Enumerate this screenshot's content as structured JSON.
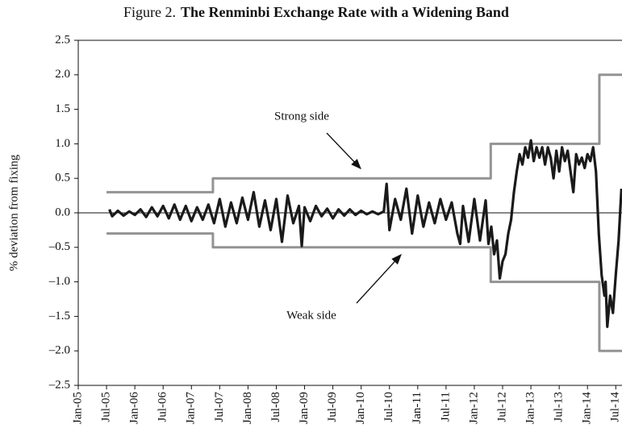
{
  "figure_label": "Figure 2.",
  "chart_data": {
    "type": "line",
    "title": "The Renminbi Exchange Rate with a Widening Band",
    "ylabel": "% deviation from fixing",
    "xlim": [
      2005,
      2014.61
    ],
    "ylim": [
      -2.5,
      2.5
    ],
    "yticks": [
      2.5,
      {
        "value": 2.0,
        "label": "2.0"
      },
      1.5,
      {
        "value": 1.0,
        "label": "1.0"
      },
      0.5,
      {
        "value": 0.0,
        "label": "0.0"
      },
      {
        "value": -0.5,
        "label": "–0.5"
      },
      {
        "value": -1.0,
        "label": "–1.0"
      },
      {
        "value": -1.5,
        "label": "–1.5"
      },
      {
        "value": -2.0,
        "label": "–2.0"
      },
      {
        "value": -2.5,
        "label": "–2.5"
      }
    ],
    "xticks": [
      {
        "value": 2005,
        "label": "Jan-05"
      },
      {
        "value": 2005.5,
        "label": "Jul-05"
      },
      {
        "value": 2006,
        "label": "Jan-06"
      },
      {
        "value": 2006.5,
        "label": "Jul-06"
      },
      {
        "value": 2007,
        "label": "Jan-07"
      },
      {
        "value": 2007.5,
        "label": "Jul-07"
      },
      {
        "value": 2008,
        "label": "Jan-08"
      },
      {
        "value": 2008.5,
        "label": "Jul-08"
      },
      {
        "value": 2009,
        "label": "Jan-09"
      },
      {
        "value": 2009.5,
        "label": "Jul-09"
      },
      {
        "value": 2010,
        "label": "Jan-10"
      },
      {
        "value": 2010.5,
        "label": "Jul-10"
      },
      {
        "value": 2011,
        "label": "Jan-11"
      },
      {
        "value": 2011.5,
        "label": "Jul-11"
      },
      {
        "value": 2012,
        "label": "Jan-12"
      },
      {
        "value": 2012.5,
        "label": "Jul-12"
      },
      {
        "value": 2013,
        "label": "Jan-13"
      },
      {
        "value": 2013.5,
        "label": "Jul-13"
      },
      {
        "value": 2014,
        "label": "Jan-14"
      },
      {
        "value": 2014.5,
        "label": "Jul-14"
      }
    ],
    "series": [
      {
        "name": "Strong side",
        "color": "#939393",
        "x": [
          2005.5,
          2007.38,
          2007.38,
          2012.29,
          2012.29,
          2014.21,
          2014.21,
          2014.61
        ],
        "values": [
          0.3,
          0.3,
          0.5,
          0.5,
          1.0,
          1.0,
          2.0,
          2.0
        ]
      },
      {
        "name": "Weak side",
        "color": "#939393",
        "x": [
          2005.5,
          2007.38,
          2007.38,
          2012.29,
          2012.29,
          2014.21,
          2014.21,
          2014.61
        ],
        "values": [
          -0.3,
          -0.3,
          -0.5,
          -0.5,
          -1.0,
          -1.0,
          -2.0,
          -2.0
        ]
      },
      {
        "color": "#1a1a1a",
        "x": [
          2005.55,
          2005.6,
          2005.7,
          2005.8,
          2005.9,
          2006.0,
          2006.1,
          2006.2,
          2006.3,
          2006.4,
          2006.5,
          2006.6,
          2006.7,
          2006.8,
          2006.9,
          2007.0,
          2007.1,
          2007.2,
          2007.3,
          2007.4,
          2007.5,
          2007.6,
          2007.7,
          2007.8,
          2007.9,
          2008.0,
          2008.1,
          2008.2,
          2008.3,
          2008.4,
          2008.5,
          2008.6,
          2008.7,
          2008.8,
          2008.9,
          2008.95,
          2009.0,
          2009.1,
          2009.2,
          2009.3,
          2009.4,
          2009.5,
          2009.6,
          2009.7,
          2009.8,
          2009.9,
          2010.0,
          2010.1,
          2010.2,
          2010.3,
          2010.4,
          2010.45,
          2010.5,
          2010.6,
          2010.7,
          2010.8,
          2010.9,
          2011.0,
          2011.1,
          2011.2,
          2011.3,
          2011.4,
          2011.5,
          2011.6,
          2011.7,
          2011.75,
          2011.8,
          2011.9,
          2012.0,
          2012.1,
          2012.2,
          2012.25,
          2012.3,
          2012.35,
          2012.4,
          2012.45,
          2012.5,
          2012.55,
          2012.6,
          2012.65,
          2012.7,
          2012.75,
          2012.8,
          2012.85,
          2012.9,
          2012.95,
          2013.0,
          2013.05,
          2013.1,
          2013.15,
          2013.2,
          2013.25,
          2013.3,
          2013.35,
          2013.4,
          2013.45,
          2013.5,
          2013.55,
          2013.6,
          2013.65,
          2013.7,
          2013.75,
          2013.8,
          2013.85,
          2013.9,
          2013.95,
          2014.0,
          2014.05,
          2014.1,
          2014.15,
          2014.2,
          2014.25,
          2014.3,
          2014.32,
          2014.35,
          2014.4,
          2014.45,
          2014.5,
          2014.55,
          2014.6
        ],
        "values": [
          0.05,
          -0.05,
          0.03,
          -0.04,
          0.02,
          -0.03,
          0.05,
          -0.06,
          0.08,
          -0.05,
          0.1,
          -0.08,
          0.12,
          -0.1,
          0.1,
          -0.12,
          0.08,
          -0.1,
          0.12,
          -0.15,
          0.2,
          -0.2,
          0.15,
          -0.15,
          0.22,
          -0.1,
          0.3,
          -0.2,
          0.18,
          -0.25,
          0.2,
          -0.42,
          0.25,
          -0.15,
          0.1,
          -0.48,
          0.08,
          -0.12,
          0.1,
          -0.05,
          0.06,
          -0.08,
          0.05,
          -0.04,
          0.05,
          -0.03,
          0.03,
          -0.02,
          0.02,
          -0.02,
          0.02,
          0.42,
          -0.25,
          0.2,
          -0.1,
          0.35,
          -0.3,
          0.25,
          -0.2,
          0.15,
          -0.15,
          0.2,
          -0.1,
          0.15,
          -0.3,
          -0.45,
          0.1,
          -0.42,
          0.2,
          -0.4,
          0.18,
          -0.45,
          -0.2,
          -0.6,
          -0.4,
          -0.95,
          -0.7,
          -0.6,
          -0.3,
          -0.1,
          0.3,
          0.6,
          0.85,
          0.7,
          0.95,
          0.8,
          1.05,
          0.75,
          0.95,
          0.8,
          0.95,
          0.7,
          0.95,
          0.8,
          0.5,
          0.9,
          0.6,
          0.95,
          0.75,
          0.9,
          0.6,
          0.3,
          0.85,
          0.7,
          0.8,
          0.65,
          0.85,
          0.75,
          0.95,
          0.6,
          -0.3,
          -0.9,
          -1.2,
          -1.0,
          -1.65,
          -1.2,
          -1.45,
          -0.9,
          -0.4,
          0.35
        ]
      }
    ]
  }
}
